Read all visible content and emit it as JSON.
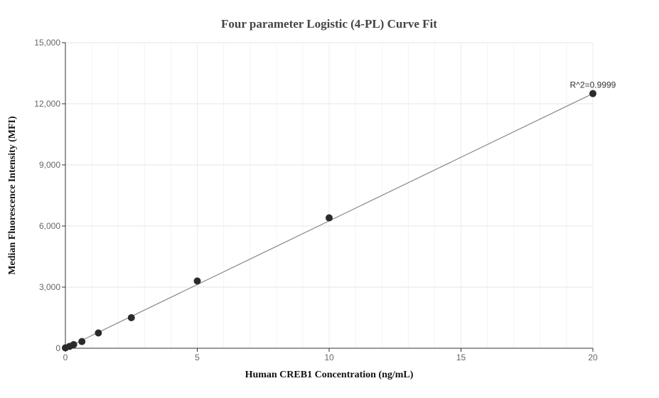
{
  "chart_data": {
    "type": "scatter",
    "title": "Four parameter Logistic (4-PL) Curve Fit",
    "xlabel": "Human CREB1 Concentration (ng/mL)",
    "ylabel": "Median Fluorescence Intensity (MFI)",
    "xlim": [
      0,
      20
    ],
    "ylim": [
      0,
      15000
    ],
    "x_ticks": [
      0,
      5,
      10,
      15,
      20
    ],
    "x_tick_labels": [
      "0",
      "5",
      "10",
      "15",
      "20"
    ],
    "y_ticks": [
      0,
      3000,
      6000,
      9000,
      12000,
      15000
    ],
    "y_tick_labels": [
      "0",
      "3,000",
      "6,000",
      "9,000",
      "12,000",
      "15,000"
    ],
    "grid": true,
    "series": [
      {
        "x": [
          0,
          0.156,
          0.3125,
          0.625,
          1.25,
          2.5,
          5,
          10,
          20
        ],
        "y": [
          20,
          90,
          180,
          330,
          750,
          1500,
          3300,
          6400,
          12500
        ]
      }
    ],
    "fit_line": {
      "x": [
        0,
        20
      ],
      "y": [
        -60,
        12500
      ]
    },
    "annotations": [
      {
        "text": "R^2=0.9999",
        "x": 20,
        "y": 12500
      }
    ],
    "colors": {
      "points": "#2b2b2b",
      "fit": "#888888",
      "grid": "#e6e6e6"
    }
  }
}
